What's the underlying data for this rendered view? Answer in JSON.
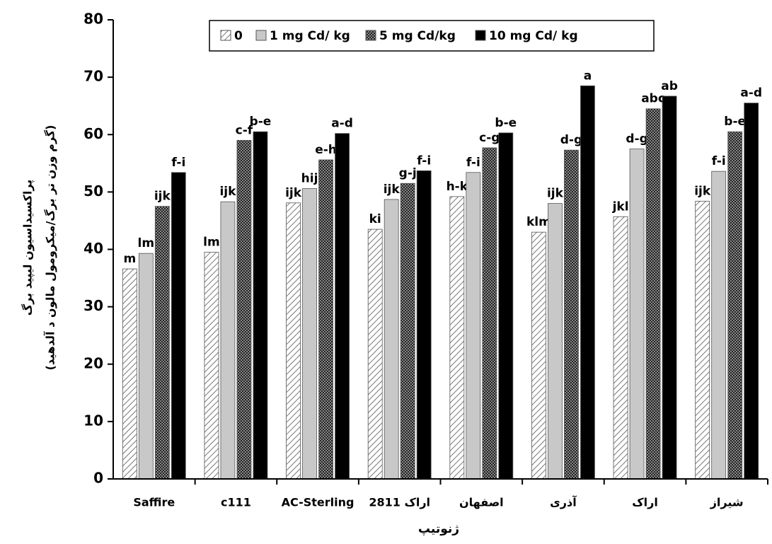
{
  "chart_data": {
    "type": "bar",
    "categories": [
      "Saffire",
      "c111",
      "AC-Sterling",
      "اراک 2811",
      "اصفهان",
      "آذری",
      "اراک",
      "شیراز"
    ],
    "series": [
      {
        "name": "0",
        "color": "#ffffff",
        "pattern": "hatch",
        "values": [
          36.6,
          39.5,
          48.1,
          43.5,
          49.2,
          43,
          45.7,
          48.4
        ],
        "letters": [
          "m",
          "lm",
          "ijk",
          "ki",
          "h-k",
          "klm",
          "jkl",
          "ijk"
        ]
      },
      {
        "name": "1 mg Cd/ kg",
        "color": "#c8c8c8",
        "pattern": "solid",
        "values": [
          39.3,
          48.3,
          50.6,
          48.7,
          53.4,
          48,
          57.5,
          53.6
        ],
        "letters": [
          "lm",
          "ijk",
          "hij",
          "ijk",
          "f-i",
          "ijk",
          "d-g",
          "f-i"
        ]
      },
      {
        "name": "5 mg Cd/kg",
        "color": "#333333",
        "pattern": "checker",
        "values": [
          47.5,
          59,
          55.6,
          51.5,
          57.7,
          57.3,
          64.5,
          60.5
        ],
        "letters": [
          "ijk",
          "c-f",
          "e-h",
          "g-j",
          "c-g",
          "d-g",
          "abc",
          "b-e"
        ]
      },
      {
        "name": "10 mg Cd/ kg",
        "color": "#000000",
        "pattern": "solid",
        "values": [
          53.4,
          60.5,
          60.2,
          53.7,
          60.3,
          68.5,
          66.7,
          65.5
        ],
        "letters": [
          "f-i",
          "b-e",
          "a-d",
          "f-i",
          "b-e",
          "a",
          "ab",
          "a-d"
        ]
      }
    ],
    "ylabel": [
      "پراکسیداسیون لیپید برگ",
      "(گرم وزن تر برگ/میکرومول مالون د آلدهید)"
    ],
    "xlabel": "ژنوتیپ",
    "ylim": [
      0,
      80
    ],
    "yticks": [
      0,
      10,
      20,
      30,
      40,
      50,
      60,
      70,
      80
    ],
    "grid": false,
    "legend": "top"
  }
}
